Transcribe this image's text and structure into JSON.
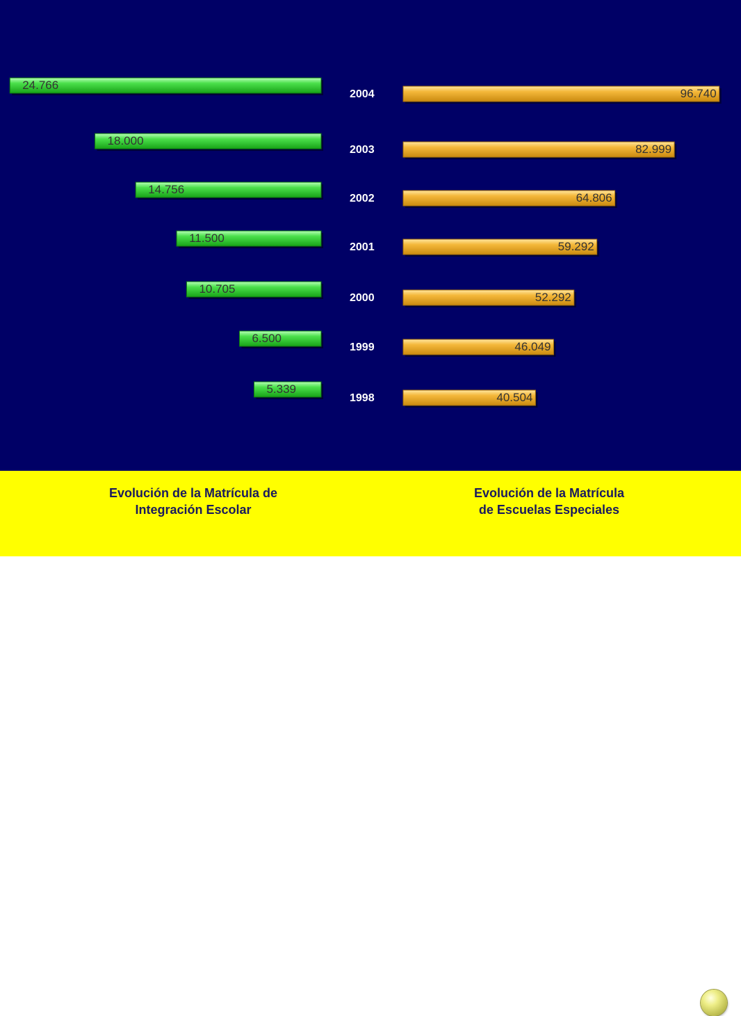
{
  "colors": {
    "background": "#000066",
    "caption_bar": "#ffff00",
    "integracion_bar": "#2ecc40",
    "especiales_bar": "#f0b030",
    "year_text": "#ffffff",
    "value_text": "#333333",
    "caption_text": "#1a1a5e"
  },
  "captions": {
    "left_line1": "Evolución de la Matrícula de",
    "left_line2": "Integración Escolar",
    "right_line1": "Evolución de la Matrícula",
    "right_line2": "de Escuelas Especiales"
  },
  "nav_icon": "round-next-slide-button",
  "chart_data": [
    {
      "type": "bar",
      "orientation": "horizontal",
      "direction": "right-to-left",
      "categories": [
        "2004",
        "2003",
        "2002",
        "2001",
        "2000",
        "1999",
        "1998"
      ],
      "series": [
        {
          "values": [
            24766,
            18000,
            14756,
            11500,
            10705,
            6500,
            5339
          ],
          "labels": [
            "24.766",
            "18.000",
            "14.756",
            "11.500",
            "10.705",
            "6.500",
            "5.339"
          ]
        }
      ],
      "title": "Evolución de la Matrícula de Integración Escolar",
      "xlabel": "",
      "ylabel": "",
      "xlim": [
        0,
        25000
      ],
      "grid": false
    },
    {
      "type": "bar",
      "orientation": "horizontal",
      "direction": "left-to-right",
      "categories": [
        "2004",
        "2003",
        "2002",
        "2001",
        "2000",
        "1999",
        "1998"
      ],
      "series": [
        {
          "values": [
            96740,
            82999,
            64806,
            59292,
            52292,
            46049,
            40504
          ],
          "labels": [
            "96.740",
            "82.999",
            "64.806",
            "59.292",
            "52.292",
            "46.049",
            "40.504"
          ]
        }
      ],
      "title": "Evolución de la Matrícula de Escuelas Especiales",
      "xlabel": "",
      "ylabel": "",
      "xlim": [
        0,
        100000
      ],
      "grid": false
    }
  ]
}
